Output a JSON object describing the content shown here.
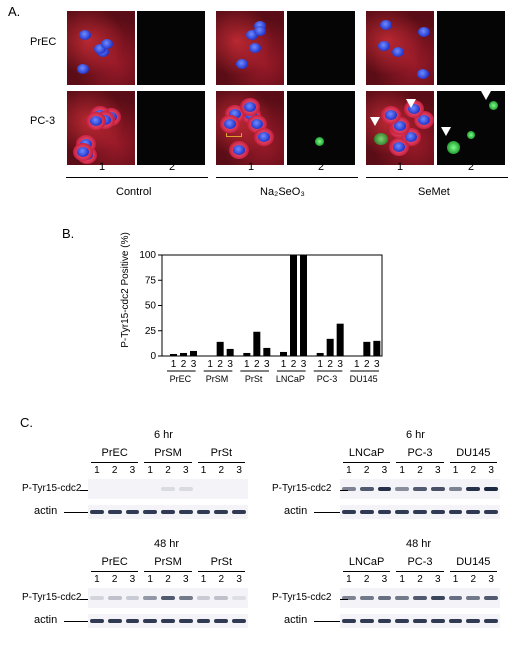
{
  "panel_a": {
    "label": "A.",
    "rows": [
      "PrEC",
      "PC-3"
    ],
    "columns": [
      "1",
      "2",
      "1",
      "2",
      "1",
      "2"
    ],
    "groups": [
      "Control",
      "Na₂SeO₃",
      "SeMet"
    ]
  },
  "panel_b": {
    "label": "B."
  },
  "chart_data": {
    "type": "bar",
    "ylabel": "P-Tyr15-cdc2 Positive (%)",
    "ylim": [
      0,
      100
    ],
    "yticks": [
      0,
      25,
      50,
      75,
      100
    ],
    "groups": [
      "PrEC",
      "PrSM",
      "PrSt",
      "LNCaP",
      "PC-3",
      "DU145"
    ],
    "sub_categories": [
      "1",
      "2",
      "3"
    ],
    "values": [
      [
        2,
        3,
        5
      ],
      [
        0,
        14,
        7
      ],
      [
        3,
        24,
        8
      ],
      [
        4,
        100,
        100
      ],
      [
        3,
        17,
        32
      ],
      [
        0,
        14,
        15
      ]
    ]
  },
  "panel_c": {
    "label": "C.",
    "blots": [
      {
        "time": "6 hr",
        "lines": [
          "PrEC",
          "PrSM",
          "PrSt"
        ],
        "lanes": [
          "1",
          "2",
          "3",
          "1",
          "2",
          "3",
          "1",
          "2",
          "3"
        ],
        "band_label": "P-Tyr15-cdc2",
        "actin_label": "actin",
        "band_intensity": [
          0,
          0,
          0,
          0,
          0.12,
          0.12,
          0,
          0,
          0
        ]
      },
      {
        "time": "6 hr",
        "lines": [
          "LNCaP",
          "PC-3",
          "DU145"
        ],
        "lanes": [
          "1",
          "2",
          "3",
          "1",
          "2",
          "3",
          "1",
          "2",
          "3"
        ],
        "band_label": "P-Tyr15-cdc2",
        "actin_label": "actin",
        "band_intensity": [
          0.55,
          0.75,
          0.95,
          0.5,
          0.75,
          0.8,
          0.55,
          0.95,
          1
        ]
      },
      {
        "time": "48 hr",
        "lines": [
          "PrEC",
          "PrSM",
          "PrSt"
        ],
        "lanes": [
          "1",
          "2",
          "3",
          "1",
          "2",
          "3",
          "1",
          "2",
          "3"
        ],
        "band_label": "P-Tyr15-cdc2",
        "actin_label": "actin",
        "band_intensity": [
          0.15,
          0.25,
          0.2,
          0.45,
          0.75,
          0.6,
          0.2,
          0.25,
          0.1
        ]
      },
      {
        "time": "48 hr",
        "lines": [
          "LNCaP",
          "PC-3",
          "DU145"
        ],
        "lanes": [
          "1",
          "2",
          "3",
          "1",
          "2",
          "3",
          "1",
          "2",
          "3"
        ],
        "band_label": "P-Tyr15-cdc2",
        "actin_label": "actin",
        "band_intensity": [
          0.55,
          0.6,
          0.65,
          0.6,
          0.75,
          0.85,
          0.65,
          0.6,
          0.75
        ]
      }
    ]
  }
}
